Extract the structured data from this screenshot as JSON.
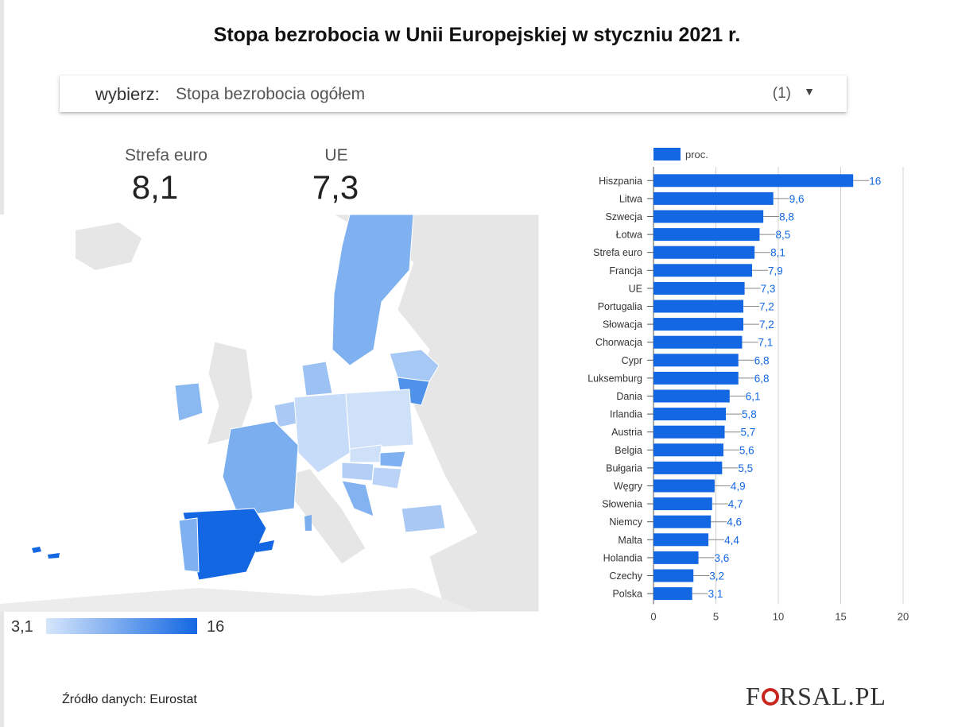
{
  "title": "Stopa bezrobocia w Unii Europejskiej w styczniu 2021 r.",
  "selector": {
    "label": "wybierz:",
    "value": "Stopa bezrobocia ogółem",
    "count": "(1)"
  },
  "kpis": [
    {
      "label": "Strefa euro",
      "value": "8,1"
    },
    {
      "label": "UE",
      "value": "7,3"
    }
  ],
  "map_legend": {
    "min": "3,1",
    "max": "16"
  },
  "colors": {
    "bar": "#1367e2",
    "label": "#1367e2",
    "map_land": "#e6e6e6",
    "map_low": "#d6e6fb",
    "map_high": "#1367e2"
  },
  "chart_data": {
    "type": "bar",
    "orientation": "horizontal",
    "legend": {
      "label": "proc.",
      "position": "top-left"
    },
    "categories": [
      "Hiszpania",
      "Litwa",
      "Szwecja",
      "Łotwa",
      "Strefa euro",
      "Francja",
      "UE",
      "Portugalia",
      "Słowacja",
      "Chorwacja",
      "Cypr",
      "Luksemburg",
      "Dania",
      "Irlandia",
      "Austria",
      "Belgia",
      "Bułgaria",
      "Węgry",
      "Słowenia",
      "Niemcy",
      "Malta",
      "Holandia",
      "Czechy",
      "Polska"
    ],
    "values": [
      16,
      9.6,
      8.8,
      8.5,
      8.1,
      7.9,
      7.3,
      7.2,
      7.2,
      7.1,
      6.8,
      6.8,
      6.1,
      5.8,
      5.7,
      5.6,
      5.5,
      4.9,
      4.7,
      4.6,
      4.4,
      3.6,
      3.2,
      3.1
    ],
    "value_labels": [
      "16",
      "9,6",
      "8,8",
      "8,5",
      "8,1",
      "7,9",
      "7,3",
      "7,2",
      "7,2",
      "7,1",
      "6,8",
      "6,8",
      "6,1",
      "5,8",
      "5,7",
      "5,6",
      "5,5",
      "4,9",
      "4,7",
      "4,6",
      "4,4",
      "3,6",
      "3,2",
      "3,1"
    ],
    "x_ticks": [
      "0",
      "5",
      "10",
      "15",
      "20"
    ],
    "xlim": [
      0,
      20
    ],
    "grid": true
  },
  "source": "Źródło danych: Eurostat",
  "logo": {
    "prefix": "F",
    "suffix": "RSAL.PL"
  }
}
